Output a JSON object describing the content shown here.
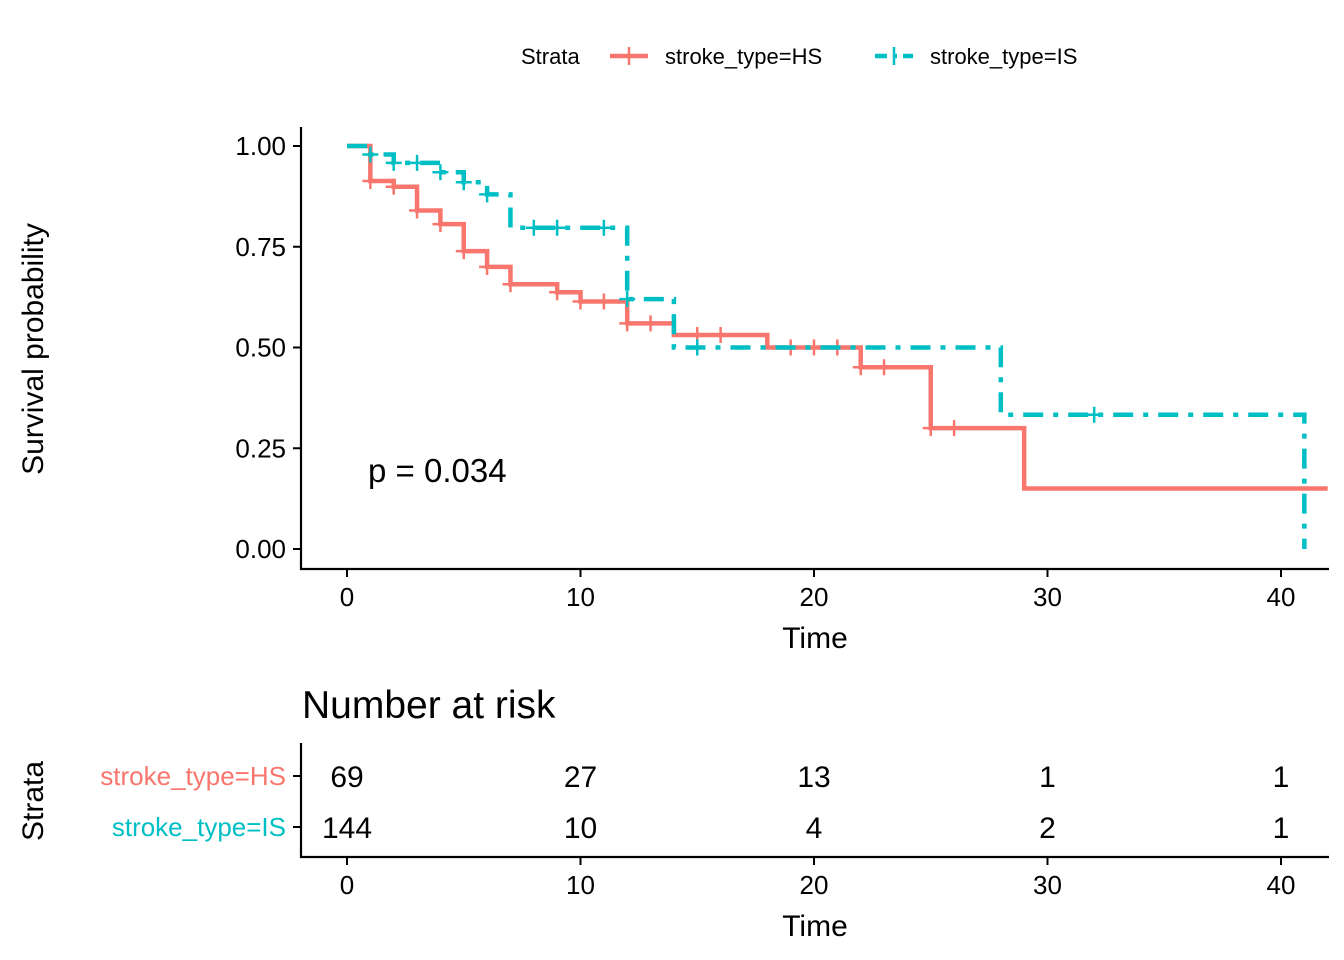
{
  "chart_data": {
    "type": "line",
    "subtype": "kaplan-meier survival curve with number-at-risk table",
    "legend": {
      "title": "Strata",
      "position": "top"
    },
    "xlabel": "Time",
    "ylabel": "Survival probability",
    "xlim": [
      0,
      41
    ],
    "ylim": [
      0,
      1
    ],
    "x_ticks": [
      0,
      10,
      20,
      30,
      40
    ],
    "y_ticks": [
      "0.00",
      "0.25",
      "0.50",
      "0.75",
      "1.00"
    ],
    "annotation": "p = 0.034",
    "series": [
      {
        "name": "stroke_type=HS",
        "color": "#F8766D",
        "line_style": "solid",
        "steps": [
          [
            0,
            1.0
          ],
          [
            1,
            0.913
          ],
          [
            2,
            0.899
          ],
          [
            3,
            0.84
          ],
          [
            4,
            0.806
          ],
          [
            5,
            0.739
          ],
          [
            6,
            0.7
          ],
          [
            7,
            0.657
          ],
          [
            9,
            0.637
          ],
          [
            10,
            0.614
          ],
          [
            12,
            0.56
          ],
          [
            14,
            0.531
          ],
          [
            18,
            0.5
          ],
          [
            22,
            0.451
          ],
          [
            25,
            0.3
          ],
          [
            29,
            0.15
          ],
          [
            42,
            0.15
          ]
        ],
        "censored": [
          [
            1,
            0.913
          ],
          [
            2,
            0.899
          ],
          [
            3,
            0.84
          ],
          [
            4,
            0.806
          ],
          [
            5,
            0.739
          ],
          [
            6,
            0.7
          ],
          [
            7,
            0.657
          ],
          [
            9,
            0.637
          ],
          [
            10,
            0.614
          ],
          [
            11,
            0.614
          ],
          [
            12,
            0.56
          ],
          [
            13,
            0.56
          ],
          [
            15,
            0.531
          ],
          [
            16,
            0.531
          ],
          [
            19,
            0.5
          ],
          [
            20,
            0.5
          ],
          [
            21,
            0.5
          ],
          [
            22,
            0.451
          ],
          [
            23,
            0.451
          ],
          [
            25,
            0.3
          ],
          [
            26,
            0.3
          ]
        ]
      },
      {
        "name": "stroke_type=IS",
        "color": "#00BFC4",
        "line_style": "dashdot",
        "steps": [
          [
            0,
            1.0
          ],
          [
            1,
            0.979
          ],
          [
            2,
            0.958
          ],
          [
            4,
            0.935
          ],
          [
            5,
            0.91
          ],
          [
            6,
            0.88
          ],
          [
            7,
            0.797
          ],
          [
            12,
            0.62
          ],
          [
            14,
            0.5
          ],
          [
            28,
            0.333
          ],
          [
            41,
            0.0
          ]
        ],
        "censored": [
          [
            1,
            0.979
          ],
          [
            2,
            0.958
          ],
          [
            3,
            0.958
          ],
          [
            4,
            0.935
          ],
          [
            5,
            0.91
          ],
          [
            6,
            0.88
          ],
          [
            8,
            0.797
          ],
          [
            9,
            0.797
          ],
          [
            11,
            0.797
          ],
          [
            12,
            0.62
          ],
          [
            15,
            0.5
          ],
          [
            32,
            0.333
          ]
        ]
      }
    ],
    "risk_table": {
      "title": "Number at risk",
      "ylabel": "Strata",
      "xlabel": "Time",
      "times": [
        0,
        10,
        20,
        30,
        40
      ],
      "rows": [
        {
          "name": "stroke_type=HS",
          "color": "#F8766D",
          "values": [
            "69",
            "27",
            "13",
            "1",
            "1"
          ]
        },
        {
          "name": "stroke_type=IS",
          "color": "#00BFC4",
          "values": [
            "144",
            "10",
            "4",
            "2",
            "1"
          ]
        }
      ]
    }
  }
}
